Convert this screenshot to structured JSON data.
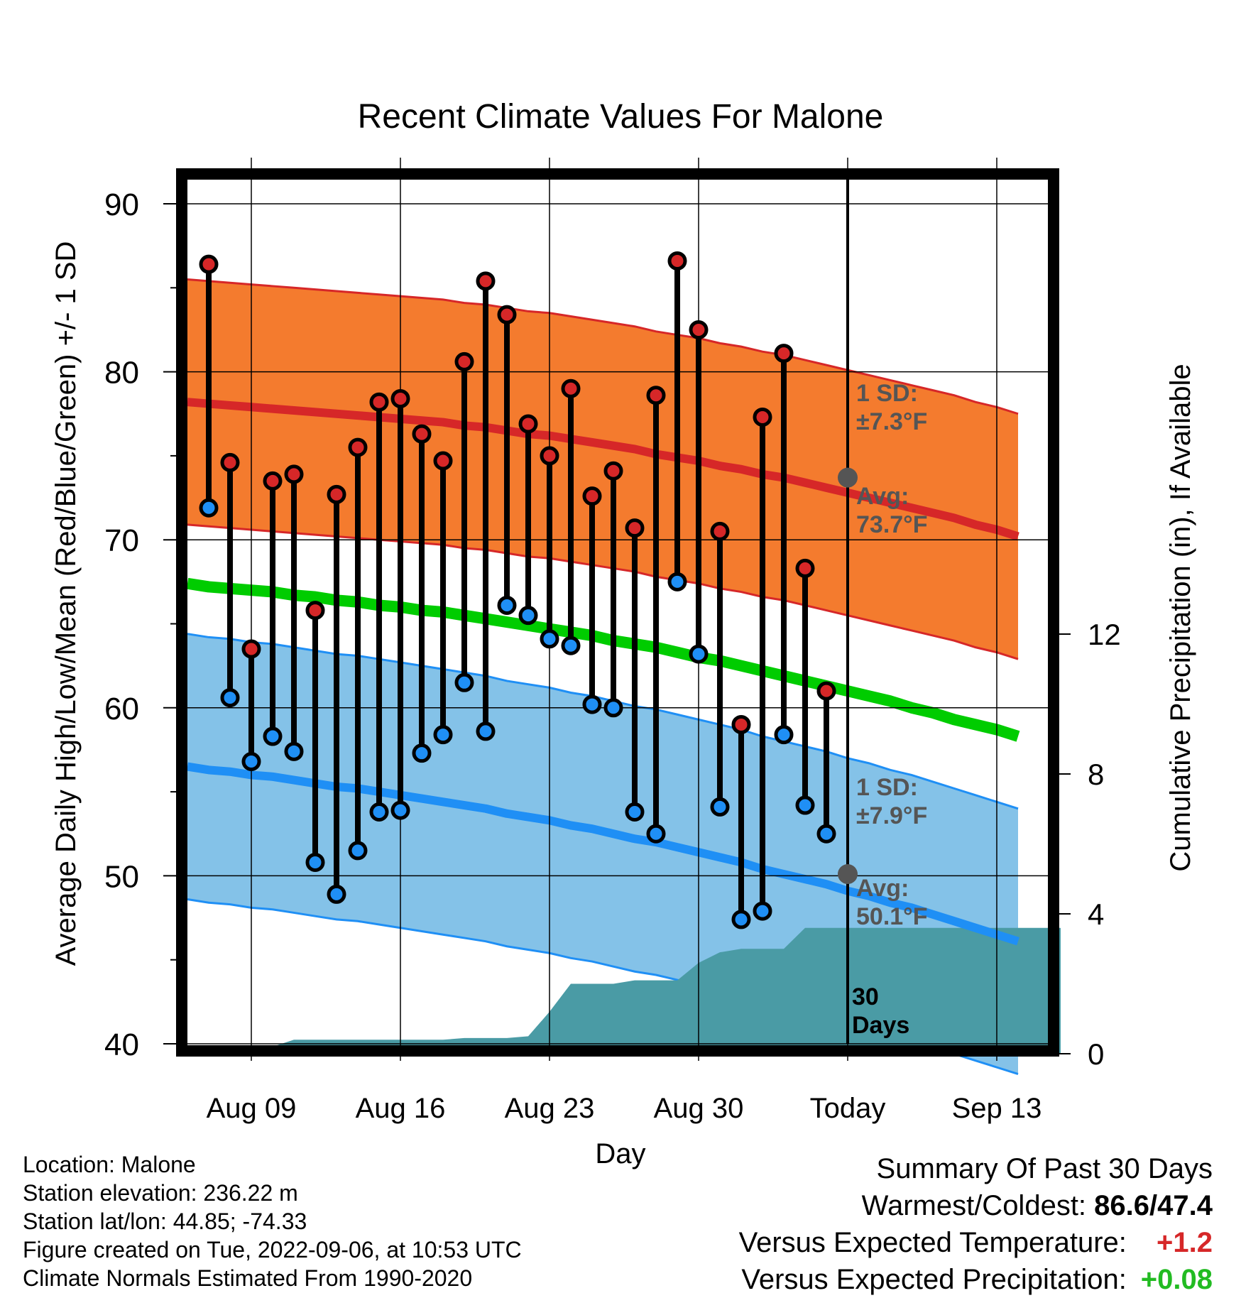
{
  "chart_data": {
    "type": "line",
    "title": "Recent Climate Values For Malone",
    "xlabel": "Day",
    "ylabel": "Average Daily High/Low/Mean (Red/Blue/Green) +/- 1 SD",
    "y2label": "Cumulative Precipitation (in), If Available",
    "ylim": [
      40,
      90
    ],
    "y2lim": [
      0,
      16
    ],
    "yticks": [
      "40",
      "50",
      "60",
      "70",
      "80",
      "90"
    ],
    "y2ticks": [
      "0",
      "4",
      "8",
      "12"
    ],
    "x_tick_labels": [
      "Aug 09",
      "Aug 16",
      "Aug 23",
      "Aug 30",
      "Today",
      "Sep 13"
    ],
    "grid": true,
    "days_shown": [
      "Aug 06",
      "Aug 07",
      "Aug 08",
      "Aug 09",
      "Aug 10",
      "Aug 11",
      "Aug 12",
      "Aug 13",
      "Aug 14",
      "Aug 15",
      "Aug 16",
      "Aug 17",
      "Aug 18",
      "Aug 19",
      "Aug 20",
      "Aug 21",
      "Aug 22",
      "Aug 23",
      "Aug 24",
      "Aug 25",
      "Aug 26",
      "Aug 27",
      "Aug 28",
      "Aug 29",
      "Aug 30",
      "Aug 31",
      "Sep 01",
      "Sep 02",
      "Sep 03",
      "Sep 04",
      "Sep 05",
      "Sep 06",
      "Sep 07",
      "Sep 08",
      "Sep 09",
      "Sep 10",
      "Sep 11",
      "Sep 12",
      "Sep 13",
      "Sep 14",
      "Sep 15",
      "Sep 16"
    ],
    "observed": {
      "dates": [
        "Aug 07",
        "Aug 08",
        "Aug 09",
        "Aug 10",
        "Aug 11",
        "Aug 12",
        "Aug 13",
        "Aug 14",
        "Aug 15",
        "Aug 16",
        "Aug 17",
        "Aug 18",
        "Aug 19",
        "Aug 20",
        "Aug 21",
        "Aug 22",
        "Aug 23",
        "Aug 24",
        "Aug 25",
        "Aug 26",
        "Aug 27",
        "Aug 28",
        "Aug 29",
        "Aug 30",
        "Aug 31",
        "Sep 01",
        "Sep 02",
        "Sep 03",
        "Sep 04",
        "Sep 05"
      ],
      "highs": [
        86.4,
        74.6,
        63.5,
        73.5,
        73.9,
        65.8,
        72.7,
        75.5,
        78.2,
        78.4,
        76.3,
        74.7,
        80.6,
        85.4,
        83.4,
        76.9,
        75.0,
        79.0,
        72.6,
        74.1,
        70.7,
        78.6,
        86.6,
        82.5,
        70.5,
        59.0,
        77.3,
        81.1,
        68.3,
        61.0
      ],
      "lows": [
        71.9,
        60.6,
        56.8,
        58.3,
        57.4,
        50.8,
        48.9,
        51.5,
        53.8,
        53.9,
        57.3,
        58.4,
        61.5,
        58.6,
        66.1,
        65.5,
        64.1,
        63.7,
        60.2,
        60.0,
        53.8,
        52.5,
        67.5,
        63.2,
        54.1,
        47.4,
        47.9,
        58.4,
        54.2,
        52.5
      ],
      "high_color": "#d62728",
      "low_color": "#1f8ff5"
    },
    "normals": {
      "high_mean": [
        78.2,
        78.1,
        78.0,
        77.9,
        77.8,
        77.7,
        77.6,
        77.5,
        77.4,
        77.3,
        77.2,
        77.1,
        77.0,
        76.8,
        76.7,
        76.5,
        76.3,
        76.2,
        76.0,
        75.8,
        75.6,
        75.4,
        75.1,
        74.9,
        74.7,
        74.4,
        74.2,
        73.9,
        73.7,
        73.4,
        73.1,
        72.8,
        72.5,
        72.2,
        71.9,
        71.6,
        71.3,
        70.9,
        70.6,
        70.2
      ],
      "high_sd": 7.3,
      "low_mean": [
        56.5,
        56.3,
        56.2,
        56.0,
        55.9,
        55.7,
        55.5,
        55.3,
        55.2,
        55.0,
        54.8,
        54.6,
        54.4,
        54.2,
        54.0,
        53.7,
        53.5,
        53.3,
        53.0,
        52.8,
        52.5,
        52.2,
        52.0,
        51.7,
        51.4,
        51.1,
        50.8,
        50.4,
        50.1,
        49.8,
        49.5,
        49.1,
        48.8,
        48.4,
        48.1,
        47.7,
        47.3,
        46.9,
        46.5,
        46.1
      ],
      "low_sd": 7.9,
      "mean_normal": [
        67.4,
        67.2,
        67.1,
        67.0,
        66.9,
        66.7,
        66.6,
        66.4,
        66.3,
        66.1,
        66.0,
        65.8,
        65.7,
        65.5,
        65.3,
        65.1,
        64.9,
        64.7,
        64.5,
        64.3,
        64.0,
        63.8,
        63.6,
        63.3,
        63.0,
        62.8,
        62.5,
        62.2,
        61.9,
        61.6,
        61.3,
        61.0,
        60.7,
        60.4,
        60.0,
        59.7,
        59.3,
        59.0,
        58.7,
        58.3
      ],
      "high_band_color": "#f47b2e",
      "high_line_color": "#d62728",
      "low_band_color": "#84c2e8",
      "low_line_color": "#1f8ff5",
      "mean_line_color": "#00cc00",
      "today_high_avg": 73.7,
      "today_low_avg": 50.1
    },
    "precipitation": {
      "dates": [
        "Aug 06",
        "Aug 07",
        "Aug 08",
        "Aug 09",
        "Aug 10",
        "Aug 11",
        "Aug 12",
        "Aug 13",
        "Aug 14",
        "Aug 15",
        "Aug 16",
        "Aug 17",
        "Aug 18",
        "Aug 19",
        "Aug 20",
        "Aug 21",
        "Aug 22",
        "Aug 23",
        "Aug 24",
        "Aug 25",
        "Aug 26",
        "Aug 27",
        "Aug 28",
        "Aug 29",
        "Aug 30",
        "Aug 31",
        "Sep 01",
        "Sep 02",
        "Sep 03",
        "Sep 04",
        "Sep 05",
        "Sep 06",
        "Sep 16"
      ],
      "cumulative": [
        0.0,
        0.0,
        0.2,
        0.2,
        0.2,
        0.4,
        0.4,
        0.4,
        0.4,
        0.4,
        0.4,
        0.4,
        0.4,
        0.45,
        0.45,
        0.45,
        0.5,
        1.2,
        2.0,
        2.0,
        2.0,
        2.1,
        2.1,
        2.1,
        2.6,
        2.9,
        3.0,
        3.0,
        3.0,
        3.6,
        3.6,
        3.6,
        3.6
      ],
      "color": "#4a9ba5"
    },
    "annotations": {
      "high_sd_label": [
        "1 SD:",
        "±7.3°F"
      ],
      "high_avg_label": [
        "Avg:",
        "73.7°F"
      ],
      "low_sd_label": [
        "1 SD:",
        "±7.9°F"
      ],
      "low_avg_label": [
        "Avg:",
        "50.1°F"
      ],
      "period_label": [
        "30",
        "Days"
      ]
    }
  },
  "info": {
    "location": "Location: Malone",
    "elevation": "Station elevation: 236.22 m",
    "latlon": "Station lat/lon: 44.85; -74.33",
    "created": "Figure created on Tue, 2022-09-06, at 10:53 UTC",
    "normals": "Climate Normals Estimated From 1990-2020"
  },
  "summary": {
    "title": "Summary Of Past 30 Days",
    "warmest_coldest_label": "Warmest/Coldest:",
    "warmest_coldest_value": "86.6/47.4",
    "temp_label": "Versus Expected Temperature:",
    "temp_value": "+1.2",
    "temp_color": "#d62728",
    "precip_label": "Versus Expected Precipitation:",
    "precip_value": "+0.08",
    "precip_color": "#22bb22"
  }
}
